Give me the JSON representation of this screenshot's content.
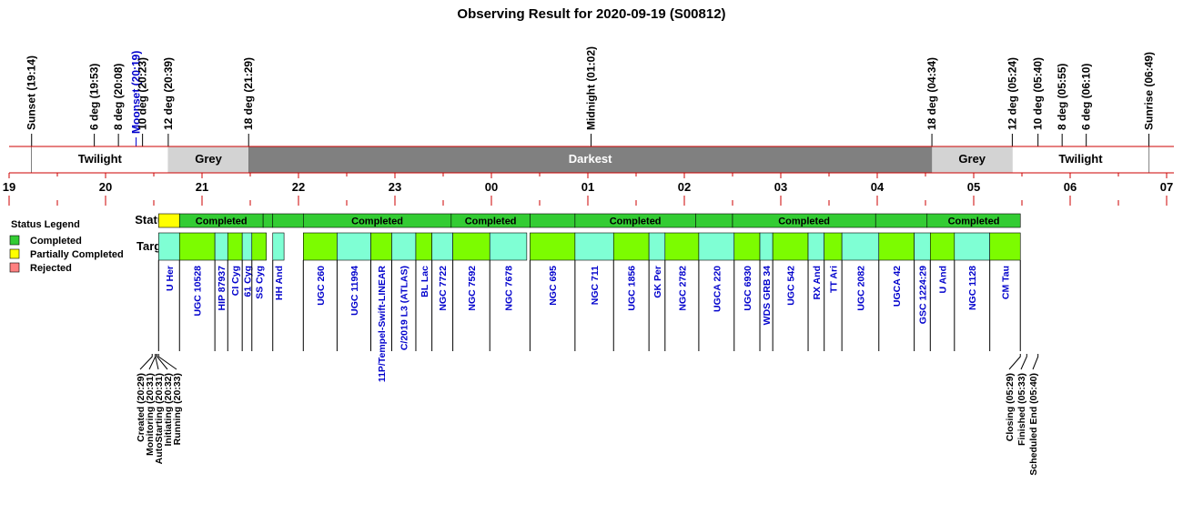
{
  "title": "Observing Result for 2020-09-19 (S00812)",
  "hour_labels": [
    "19",
    "20",
    "21",
    "22",
    "23",
    "00",
    "01",
    "02",
    "03",
    "04",
    "05",
    "06",
    "07"
  ],
  "events": [
    {
      "label": "Sunset (19:14)",
      "t": "19:14",
      "color": "#000000"
    },
    {
      "label": "6 deg (19:53)",
      "t": "19:53",
      "color": "#000000"
    },
    {
      "label": "8 deg (20:08)",
      "t": "20:08",
      "color": "#000000"
    },
    {
      "label": "Moonset (20:19)",
      "t": "20:19",
      "color": "#0000cc"
    },
    {
      "label": "10 deg (20:23)",
      "t": "20:23",
      "color": "#000000"
    },
    {
      "label": "12 deg (20:39)",
      "t": "20:39",
      "color": "#000000"
    },
    {
      "label": "18 deg (21:29)",
      "t": "21:29",
      "color": "#000000"
    },
    {
      "label": "Midnight (01:02)",
      "t": "01:02",
      "color": "#000000"
    },
    {
      "label": "18 deg (04:34)",
      "t": "04:34",
      "color": "#000000"
    },
    {
      "label": "12 deg (05:24)",
      "t": "05:24",
      "color": "#000000"
    },
    {
      "label": "10 deg (05:40)",
      "t": "05:40",
      "color": "#000000"
    },
    {
      "label": "8 deg (05:55)",
      "t": "05:55",
      "color": "#000000"
    },
    {
      "label": "6 deg (06:10)",
      "t": "06:10",
      "color": "#000000"
    },
    {
      "label": "Sunrise (06:49)",
      "t": "06:49",
      "color": "#000000"
    }
  ],
  "sky_periods": [
    {
      "label": "Twilight",
      "start": "19:14",
      "end": "20:39",
      "color": "#ffffff",
      "text_color": "#000000"
    },
    {
      "label": "Grey",
      "start": "20:39",
      "end": "21:29",
      "color": "#d3d3d3",
      "text_color": "#000000"
    },
    {
      "label": "Darkest",
      "start": "21:29",
      "end": "04:34",
      "color": "#808080",
      "text_color": "#ffffff"
    },
    {
      "label": "Grey",
      "start": "04:34",
      "end": "05:24",
      "color": "#d3d3d3",
      "text_color": "#000000"
    },
    {
      "label": "Twilight",
      "start": "05:24",
      "end": "06:49",
      "color": "#ffffff",
      "text_color": "#000000"
    }
  ],
  "status_legend": {
    "title": "Status Legend",
    "items": [
      {
        "label": "Completed",
        "color": "#33cc33"
      },
      {
        "label": "Partially Completed",
        "color": "#ffff00"
      },
      {
        "label": "Rejected",
        "color": "#ff8080"
      }
    ]
  },
  "row_labels": {
    "status": "Status",
    "targets": "Targets"
  },
  "status_blocks": [
    {
      "start": "20:33",
      "end": "20:46",
      "status": "Partially Completed",
      "label": ""
    },
    {
      "start": "20:46",
      "end": "21:38",
      "status": "Completed",
      "label": "Completed"
    },
    {
      "start": "21:38",
      "end": "21:44",
      "status": "Completed",
      "label": ""
    },
    {
      "start": "21:44",
      "end": "22:03",
      "status": "Completed",
      "label": ""
    },
    {
      "start": "22:03",
      "end": "23:35",
      "status": "Completed",
      "label": "Completed"
    },
    {
      "start": "23:35",
      "end": "00:24",
      "status": "Completed",
      "label": "Completed"
    },
    {
      "start": "00:24",
      "end": "00:52",
      "status": "Completed",
      "label": ""
    },
    {
      "start": "00:52",
      "end": "02:07",
      "status": "Completed",
      "label": "Completed"
    },
    {
      "start": "02:07",
      "end": "02:30",
      "status": "Completed",
      "label": ""
    },
    {
      "start": "02:30",
      "end": "03:59",
      "status": "Completed",
      "label": "Completed"
    },
    {
      "start": "03:59",
      "end": "04:31",
      "status": "Completed",
      "label": ""
    },
    {
      "start": "04:31",
      "end": "05:29",
      "status": "Completed",
      "label": "Completed"
    }
  ],
  "targets": [
    {
      "name": "U Her",
      "start": "20:33",
      "end": "20:46",
      "color": "#7fffd4"
    },
    {
      "name": "UGC 10528",
      "start": "20:46",
      "end": "21:08",
      "color": "#7cfc00"
    },
    {
      "name": "HIP 87937",
      "start": "21:08",
      "end": "21:16",
      "color": "#7fffd4"
    },
    {
      "name": "CI Cyg",
      "start": "21:16",
      "end": "21:25",
      "color": "#7cfc00"
    },
    {
      "name": "61 Cyg",
      "start": "21:25",
      "end": "21:31",
      "color": "#7fffd4"
    },
    {
      "name": "SS Cyg",
      "start": "21:31",
      "end": "21:40",
      "color": "#7cfc00"
    },
    {
      "name": "HH And",
      "start": "21:44",
      "end": "21:51",
      "color": "#7fffd4"
    },
    {
      "name": "UGC 260",
      "start": "22:03",
      "end": "22:24",
      "color": "#7cfc00"
    },
    {
      "name": "UGC 11994",
      "start": "22:24",
      "end": "22:45",
      "color": "#7fffd4"
    },
    {
      "name": "11P/Tempel-Swift-LINEAR",
      "start": "22:45",
      "end": "22:58",
      "color": "#7cfc00"
    },
    {
      "name": "C/2019 L3 (ATLAS)",
      "start": "22:58",
      "end": "23:13",
      "color": "#7fffd4"
    },
    {
      "name": "BL Lac",
      "start": "23:13",
      "end": "23:23",
      "color": "#7cfc00"
    },
    {
      "name": "NGC 7722",
      "start": "23:23",
      "end": "23:36",
      "color": "#7fffd4"
    },
    {
      "name": "NGC 7592",
      "start": "23:36",
      "end": "23:59",
      "color": "#7cfc00"
    },
    {
      "name": "NGC 7678",
      "start": "23:59",
      "end": "00:22",
      "color": "#7fffd4"
    },
    {
      "name": "NGC 695",
      "start": "00:24",
      "end": "00:52",
      "color": "#7cfc00"
    },
    {
      "name": "NGC 711",
      "start": "00:52",
      "end": "01:16",
      "color": "#7fffd4"
    },
    {
      "name": "UGC 1856",
      "start": "01:16",
      "end": "01:38",
      "color": "#7cfc00"
    },
    {
      "name": "GK Per",
      "start": "01:38",
      "end": "01:48",
      "color": "#7fffd4"
    },
    {
      "name": "NGC 2782",
      "start": "01:48",
      "end": "02:09",
      "color": "#7cfc00"
    },
    {
      "name": "UGCA 220",
      "start": "02:09",
      "end": "02:31",
      "color": "#7fffd4"
    },
    {
      "name": "UGC 6930",
      "start": "02:31",
      "end": "02:47",
      "color": "#7cfc00"
    },
    {
      "name": "WDS GRB 34",
      "start": "02:47",
      "end": "02:55",
      "color": "#7fffd4"
    },
    {
      "name": "UGC 542",
      "start": "02:55",
      "end": "03:17",
      "color": "#7cfc00"
    },
    {
      "name": "RX And",
      "start": "03:17",
      "end": "03:27",
      "color": "#7fffd4"
    },
    {
      "name": "TT Ari",
      "start": "03:27",
      "end": "03:38",
      "color": "#7cfc00"
    },
    {
      "name": "UGC 2082",
      "start": "03:38",
      "end": "04:01",
      "color": "#7fffd4"
    },
    {
      "name": "UGCA 42",
      "start": "04:01",
      "end": "04:23",
      "color": "#7cfc00"
    },
    {
      "name": "GSC 1224:29",
      "start": "04:23",
      "end": "04:33",
      "color": "#7fffd4"
    },
    {
      "name": "U And",
      "start": "04:33",
      "end": "04:48",
      "color": "#7cfc00"
    },
    {
      "name": "NGC 1128",
      "start": "04:48",
      "end": "05:10",
      "color": "#7fffd4"
    },
    {
      "name": "CM Tau",
      "start": "05:10",
      "end": "05:29",
      "color": "#7cfc00"
    }
  ],
  "session_events": [
    {
      "label": "Created (20:29)",
      "t": "20:29"
    },
    {
      "label": "Monitoring (20:31)",
      "t": "20:31"
    },
    {
      "label": "AutoStarting (20:31)",
      "t": "20:31"
    },
    {
      "label": "Initiating (20:32)",
      "t": "20:32"
    },
    {
      "label": "Running (20:33)",
      "t": "20:33"
    },
    {
      "label": "Closing (05:29)",
      "t": "05:29"
    },
    {
      "label": "Finished (05:33)",
      "t": "05:33"
    },
    {
      "label": "Scheduled End (05:40)",
      "t": "05:40"
    }
  ],
  "chart_data": {
    "type": "timeline",
    "title": "Observing Result for 2020-09-19 (S00812)",
    "x_range": [
      "19:00",
      "07:00"
    ],
    "x_ticks": [
      "19",
      "20",
      "21",
      "22",
      "23",
      "00",
      "01",
      "02",
      "03",
      "04",
      "05",
      "06",
      "07"
    ],
    "legend": [
      "Completed",
      "Partially Completed",
      "Rejected"
    ]
  }
}
